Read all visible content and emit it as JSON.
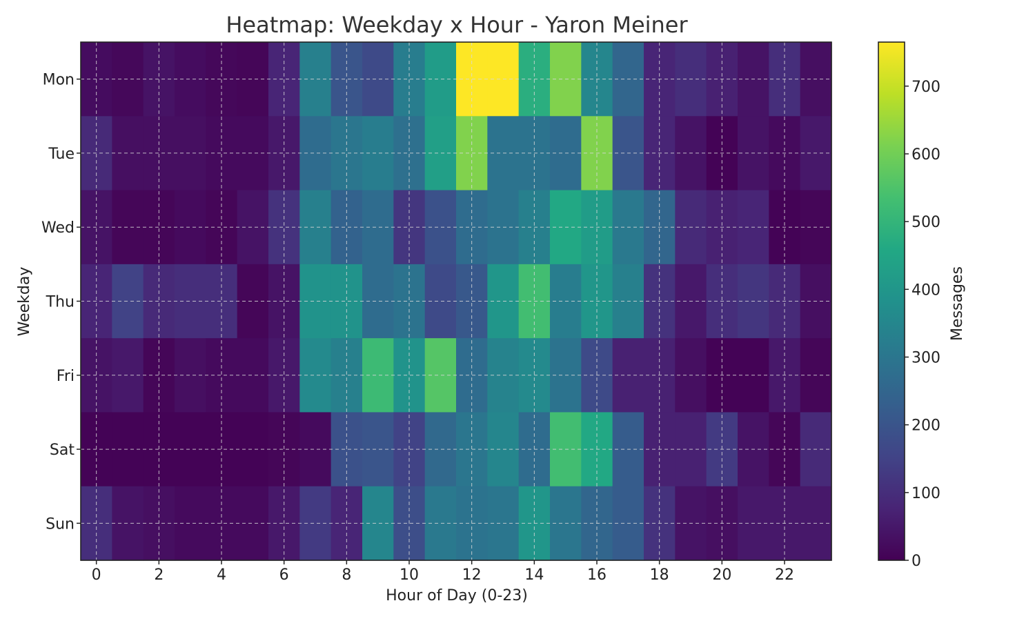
{
  "chart_data": {
    "type": "heatmap",
    "title": "Heatmap: Weekday x Hour - Yaron Meiner",
    "xlabel": "Hour of Day (0-23)",
    "ylabel": "Weekday",
    "x": [
      0,
      1,
      2,
      3,
      4,
      5,
      6,
      7,
      8,
      9,
      10,
      11,
      12,
      13,
      14,
      15,
      16,
      17,
      18,
      19,
      20,
      21,
      22,
      23
    ],
    "x_tick_labels": [
      "0",
      "2",
      "4",
      "6",
      "8",
      "10",
      "12",
      "14",
      "16",
      "18",
      "20",
      "22"
    ],
    "x_tick_values": [
      0,
      2,
      4,
      6,
      8,
      10,
      12,
      14,
      16,
      18,
      20,
      22
    ],
    "y": [
      "Mon",
      "Tue",
      "Wed",
      "Thu",
      "Fri",
      "Sat",
      "Sun"
    ],
    "values": [
      [
        25,
        15,
        40,
        25,
        15,
        10,
        80,
        330,
        200,
        170,
        320,
        420,
        765,
        765,
        480,
        620,
        350,
        250,
        80,
        100,
        70,
        40,
        100,
        30
      ],
      [
        90,
        30,
        30,
        30,
        20,
        20,
        50,
        270,
        300,
        320,
        280,
        430,
        620,
        290,
        290,
        270,
        620,
        200,
        80,
        40,
        5,
        40,
        20,
        50
      ],
      [
        40,
        10,
        10,
        20,
        10,
        40,
        110,
        330,
        240,
        270,
        120,
        190,
        270,
        290,
        330,
        460,
        420,
        310,
        250,
        90,
        70,
        80,
        5,
        10
      ],
      [
        80,
        150,
        90,
        100,
        100,
        10,
        40,
        390,
        390,
        270,
        290,
        170,
        210,
        400,
        530,
        320,
        400,
        330,
        110,
        50,
        100,
        120,
        90,
        30
      ],
      [
        40,
        50,
        10,
        30,
        20,
        20,
        50,
        360,
        330,
        520,
        390,
        560,
        270,
        340,
        360,
        290,
        170,
        70,
        70,
        30,
        5,
        5,
        50,
        10
      ],
      [
        5,
        5,
        5,
        5,
        5,
        5,
        10,
        20,
        190,
        200,
        150,
        260,
        300,
        350,
        270,
        530,
        460,
        220,
        70,
        70,
        130,
        40,
        10,
        90
      ],
      [
        100,
        40,
        30,
        20,
        20,
        20,
        50,
        130,
        80,
        350,
        180,
        310,
        290,
        300,
        400,
        300,
        250,
        220,
        110,
        40,
        30,
        50,
        50,
        50
      ]
    ],
    "colorbar": {
      "label": "Messages",
      "min": 0,
      "max": 765,
      "ticks": [
        0,
        100,
        200,
        300,
        400,
        500,
        600,
        700
      ],
      "tick_labels": [
        "0",
        "100",
        "200",
        "300",
        "400",
        "500",
        "600",
        "700"
      ],
      "colormap": "viridis"
    },
    "grid": true
  }
}
